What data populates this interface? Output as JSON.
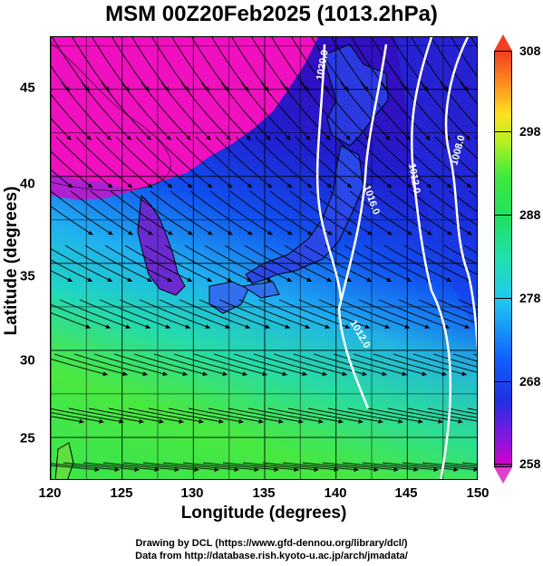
{
  "map": {
    "title": "MSM 00Z20Feb2025 (1013.2hPa)",
    "xlabel": "Longitude (degrees)",
    "ylabel": "Latitude  (degrees)",
    "lon_range": [
      120,
      150
    ],
    "lat_range": [
      22.5,
      48
    ],
    "lon_ticks": [
      "120",
      "125",
      "130",
      "135",
      "140",
      "145",
      "150"
    ],
    "lat_ticks": [
      "25",
      "30",
      "35",
      "40",
      "45"
    ],
    "colorbar": {
      "min": 258,
      "max": 308,
      "ticks": [
        "258",
        "268",
        "278",
        "288",
        "298",
        "308"
      ]
    },
    "isobar_labels": [
      "1020.0",
      "1016.0",
      "1012.0",
      "1008.0",
      "1012.0"
    ],
    "credits": [
      "Drawing by DCL (https://www.gfd-dennou.org/library/dcl/)",
      "Data from http://database.rish.kyoto-u.ac.jp/arch/jmadata/"
    ]
  }
}
